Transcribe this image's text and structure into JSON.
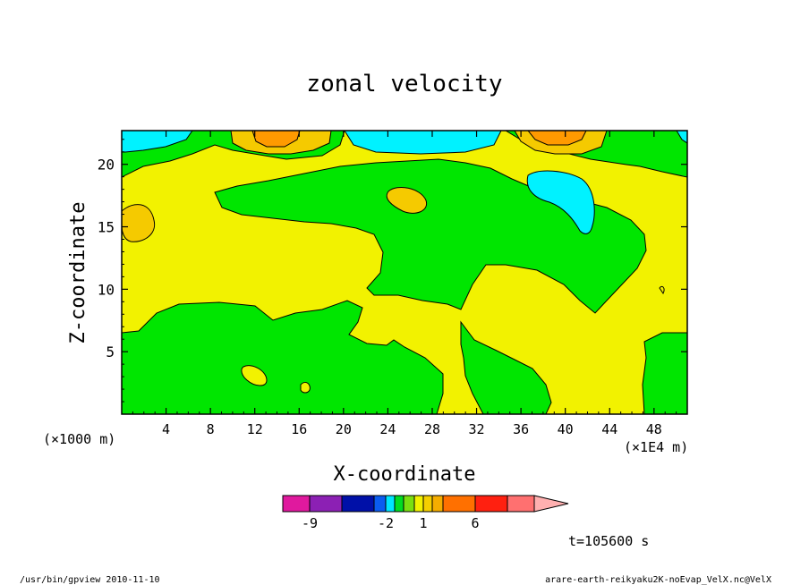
{
  "chart_data": {
    "type": "heatmap",
    "title": "zonal velocity",
    "xlabel": "X-coordinate",
    "ylabel": "Z-coordinate",
    "x_unit_left": "(×1000 m)",
    "x_unit_right": "(×1E4 m)",
    "xlim": [
      0,
      51
    ],
    "ylim": [
      0,
      22.7
    ],
    "x_ticks": [
      4,
      8,
      12,
      16,
      20,
      24,
      28,
      32,
      36,
      40,
      44,
      48
    ],
    "y_ticks": [
      5,
      10,
      15,
      20
    ],
    "colorbar": {
      "levels": [
        -9,
        -2,
        1,
        6
      ],
      "level_labels": [
        "-9",
        "-2",
        "1",
        "6"
      ],
      "colors": [
        "#e0199e",
        "#8c20b4",
        "#0010a8",
        "#0a5cf0",
        "#00e6ff",
        "#00dd22",
        "#7adf10",
        "#f2f200",
        "#f5cf00",
        "#f5ad00",
        "#ff7000",
        "#ff2010",
        "#ff7070",
        "#ffb0b0"
      ]
    },
    "annotation": "t=105600 s"
  },
  "footer": {
    "left": "/usr/bin/gpview  2010-11-10",
    "right": "arare-earth-reikyaku2K-noEvap_VelX.nc@VelX"
  },
  "colors": {
    "yellow": "#f2f200",
    "green": "#00e600",
    "cyan": "#00f2ff",
    "orange_light": "#f5ca00",
    "orange": "#ff9a00"
  }
}
